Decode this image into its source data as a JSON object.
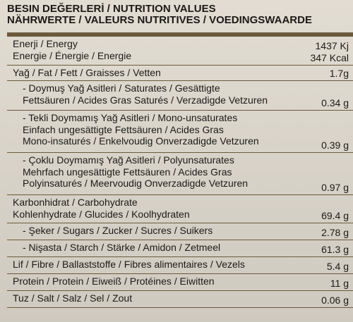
{
  "header": {
    "line1": "BESIN DEĞERLERİ / NUTRITION VALUES",
    "line2": "NÄHRWERTE / VALEURS NUTRITIVES / VOEDINGSWAARDE"
  },
  "rows": [
    {
      "id": "energy",
      "lines": [
        "Enerji / Energy",
        "Energie / Énergie / Energie"
      ],
      "values": [
        "1437 Kj",
        "347 Kcal"
      ],
      "sub": false,
      "height": 41
    },
    {
      "id": "fat",
      "lines": [
        "Yağ / Fat / Fett / Graisses / Vetten"
      ],
      "values": [
        "1.7g"
      ],
      "sub": false,
      "height": 22
    },
    {
      "id": "saturates",
      "lines": [
        "- Doymuş Yağ Asitleri / Saturates / Gesättigte",
        "Fettsäuren / Acides Gras Saturés / Verzadigde Vetzuren"
      ],
      "values": [
        "0.34 g"
      ],
      "sub": true,
      "height": 42
    },
    {
      "id": "mono",
      "lines": [
        "- Tekli Doymamış Yağ Asitleri / Mono-unsaturates",
        "Einfach ungesättigte Fettsäuren / Acides Gras",
        "Mono-insaturés / Enkelvoudig Onverzadigde Vetzuren"
      ],
      "values": [
        "0.39 g"
      ],
      "sub": true,
      "height": 60
    },
    {
      "id": "poly",
      "lines": [
        "- Çoklu Doymamış Yağ Asitleri / Polyunsaturates",
        "Mehrfach ungesättigte Fettsäuren / Acides Gras",
        "Polyinsaturés / Meervoudig Onverzadigde Vetzuren"
      ],
      "values": [
        "0.97 g"
      ],
      "sub": true,
      "height": 60
    },
    {
      "id": "carbohydrate",
      "lines": [
        "Karbonhidrat / Carbohydrate",
        "Kohlenhydrate / Glucides / Koolhydraten"
      ],
      "values": [
        "69.4 g"
      ],
      "sub": false,
      "height": 40
    },
    {
      "id": "sugars",
      "lines": [
        "- Şeker / Sugars / Zucker / Sucres / Suikers"
      ],
      "values": [
        "2.78 g"
      ],
      "sub": true,
      "height": 24
    },
    {
      "id": "starch",
      "lines": [
        "- Nişasta / Starch / Stärke / Amidon / Zetmeel"
      ],
      "values": [
        "61.3 g"
      ],
      "sub": true,
      "height": 24
    },
    {
      "id": "fibre",
      "lines": [
        "Lif / Fibre / Ballaststoffe / Fibres alimentaires / Vezels"
      ],
      "values": [
        "5.4 g"
      ],
      "sub": false,
      "height": 24
    },
    {
      "id": "protein",
      "lines": [
        "Protein / Protein / Eiweiß / Protéines / Eiwitten"
      ],
      "values": [
        "11 g"
      ],
      "sub": false,
      "height": 24
    },
    {
      "id": "salt",
      "lines": [
        "Tuz / Salt / Salz / Sel / Zout"
      ],
      "values": [
        "0.06 g"
      ],
      "sub": false,
      "height": 24
    }
  ]
}
